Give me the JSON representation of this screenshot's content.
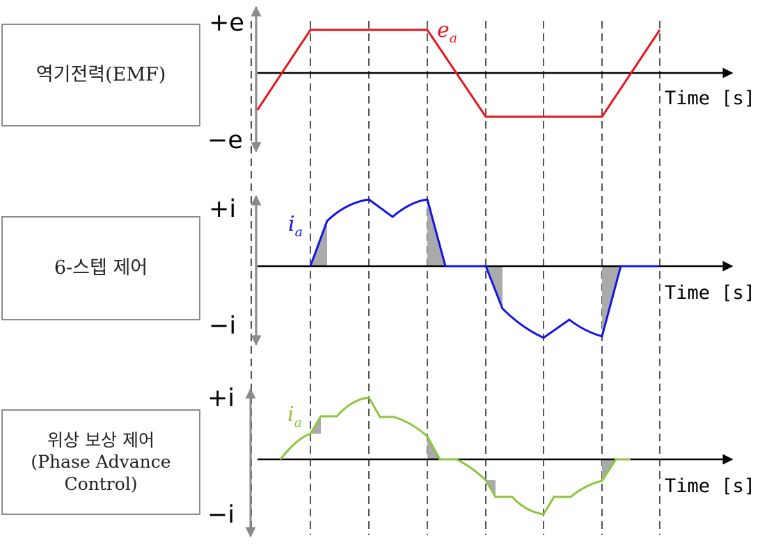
{
  "rows": [
    {
      "id": "emf",
      "box_lines": [
        "역기전력(EMF)"
      ],
      "y_top_label": "+e",
      "y_bottom_label": "−e",
      "x_axis_label": "Time [s]",
      "waveform": {
        "symbol": "e",
        "subscript": "a",
        "color": "#e8141b"
      }
    },
    {
      "id": "six-step",
      "box_lines": [
        "6-스텝 제어"
      ],
      "y_top_label": "+i",
      "y_bottom_label": "−i",
      "x_axis_label": "Time [s]",
      "waveform": {
        "symbol": "i",
        "subscript": "a",
        "color": "#1414e6"
      }
    },
    {
      "id": "phase-advance",
      "box_lines": [
        "위상 보상 제어",
        "(Phase Advance",
        "Control)"
      ],
      "y_top_label": "+i",
      "y_bottom_label": "−i",
      "x_axis_label": "Time [s]",
      "waveform": {
        "symbol": "i",
        "subscript": "a",
        "color": "#8cc63f"
      }
    }
  ],
  "colors": {
    "axis": "#000000",
    "y_axis": "#8a8a8a",
    "gridline": "#555555",
    "shading": "#aaaaaa"
  }
}
